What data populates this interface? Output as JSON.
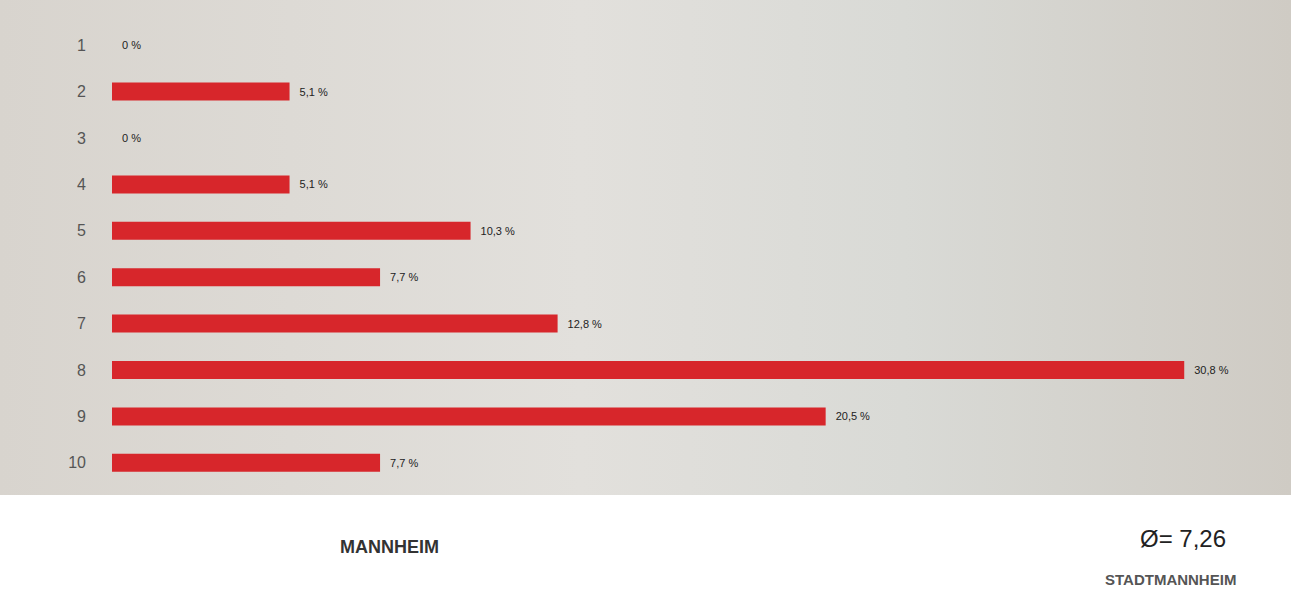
{
  "chart_data": {
    "type": "bar",
    "orientation": "horizontal",
    "categories": [
      "1",
      "2",
      "3",
      "4",
      "5",
      "6",
      "7",
      "8",
      "9",
      "10"
    ],
    "values": [
      0,
      5.1,
      0,
      5.1,
      10.3,
      7.7,
      12.8,
      30.8,
      20.5,
      7.7
    ],
    "value_labels": [
      "0 %",
      "5,1 %",
      "0 %",
      "5,1 %",
      "10,3 %",
      "7,7 %",
      "12,8 %",
      "30,8 %",
      "20,5 %",
      "7,7 %"
    ],
    "color": "#d7262b",
    "xlim": [
      0,
      32
    ],
    "grid": false,
    "data_labels": true,
    "tick_labels": "y",
    "annotations": [
      "Ø= 7,26",
      "MANNHEIM",
      "STADTMANNHEIM"
    ]
  }
}
